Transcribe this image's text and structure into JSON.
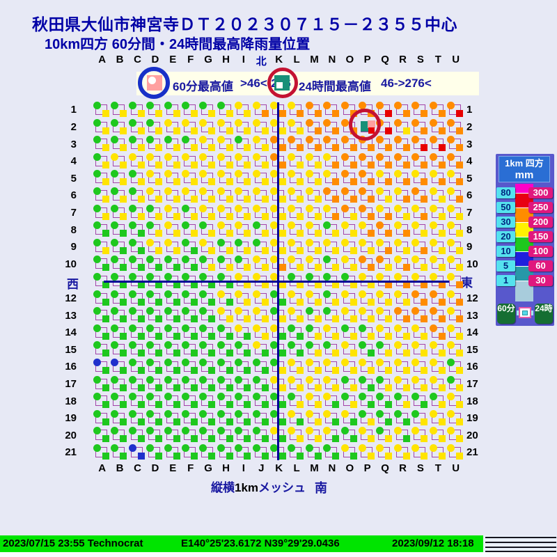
{
  "title": "秋田県大仙市神宮寺ＤＴ２０２３０７１５－２３５５中心",
  "subtitle": "10km四方 60分間・24時間最高降雨量位置",
  "marker_legend": {
    "item_60min": {
      "label": "60分最高値",
      "range": ">46<-276"
    },
    "item_24h": {
      "label": "24時間最高値",
      "range": "46->276<"
    }
  },
  "compass": {
    "north": "北",
    "south": "南",
    "west": "西",
    "east": "東"
  },
  "mesh_note": {
    "prefix": "縦横",
    "bold": "1km",
    "suffix": "メッシュ"
  },
  "chart_data": {
    "type": "heatmap",
    "title": "10km四方 60分間・24時間最高降雨量位置",
    "description": "21x21 1km mesh; per cell a circle = 60-min max rainfall class and a square = 24-hour max rainfall class",
    "columns_top": [
      "A",
      "B",
      "C",
      "D",
      "E",
      "F",
      "G",
      "H",
      "I",
      "北",
      "K",
      "L",
      "M",
      "N",
      "O",
      "P",
      "Q",
      "R",
      "S",
      "T",
      "U"
    ],
    "columns_bottom": [
      "A",
      "B",
      "C",
      "D",
      "E",
      "F",
      "G",
      "H",
      "I",
      "J",
      "K",
      "L",
      "M",
      "N",
      "O",
      "P",
      "Q",
      "R",
      "S",
      "T",
      "U"
    ],
    "rows": [
      "1",
      "2",
      "3",
      "4",
      "5",
      "6",
      "7",
      "8",
      "9",
      "10",
      "11",
      "12",
      "13",
      "14",
      "15",
      "16",
      "17",
      "18",
      "19",
      "20",
      "21"
    ],
    "class_colors": {
      "g": "#1EC81E",
      "y": "#FFE400",
      "o": "#FF8C00",
      "r": "#E80000",
      "b": "#2030CC"
    },
    "circle_classes": [
      "ggggggggyyyyooooooooo",
      "ggggyyyyyyyyooooooooo",
      "ggggggyygyooooooooooo",
      "gyyyyyyyyyoyyyooooooo",
      "gggyyyyyyyyyyyooyyyyy",
      "gggyyyyyyyyyyoooyyoyy",
      "ggggygyyyyyyyyooyyyyy",
      "ggggyggyygyyygyyoyyyy",
      "gggyygygggyyyyyyyyyyy",
      "gggggggggyyyygyooyyyy",
      "ggggggggyyyggggyyyyyy",
      "gggggggyyygyygyyyyooy",
      "gggggggyyygyggyyyoooy",
      "ggggggggyyyggyggyyyoy",
      "gggggggggyggggyggyyyy",
      "bbgggggggggyyyyyyyyyg",
      "ggggggggggyyyygggyyyg",
      "ggggggggggggyyggggggy",
      "gggggggggggyyyyggggyy",
      "ggggggggggyyyygygyyyy",
      "ggbgggggggggggyyyyyyy"
    ],
    "square_classes": [
      "yyyyyyyyyooooooorooor",
      "yyyyyyyyyyyyooorryooo",
      "yyyyyyyyyyoooooooorro",
      "yyyyyyyyyyoyyoooooooo",
      "yyyyyyyyyyyyyoooooooo",
      "yyyyyyyyyyyyyoooyooyo",
      "yyyyyyyyyyyyyoyooyoyy",
      "gggyyyyyyyyyyyyoooyyy",
      "yggyygyyyyyyyyyyoyoyy",
      "ggggggyyyyoyyyyoyoyyy",
      "ggggggggyyyyyyyyooooo",
      "ggggggggyygyyyyyyyooo",
      "gggggggyyyyyyyyyyoooo",
      "gggggggggyggyyyyyyyoy",
      "ggggggggggggyyygyyyyy",
      "ggggggggggyyyyyyyyyyy",
      "ggggggggggyyyyygyyyyy",
      "gggggggggggyygyggygyy",
      "ggggggggggggyggyggyyy",
      "gggggggggggyyggyygyyy",
      "ggbggggggggggggyyyyyy"
    ],
    "center_cell": {
      "col_label": "P",
      "row": 2,
      "col_index": 15
    },
    "scale_60min_mm": [
      80,
      50,
      30,
      20,
      10,
      5,
      1
    ],
    "scale_24h_mm": [
      300,
      250,
      200,
      150,
      100,
      60,
      30
    ]
  },
  "scale_panel": {
    "header_area": "1km 四方",
    "header_unit": "mm",
    "left_values": [
      "80",
      "50",
      "30",
      "20",
      "10",
      "5",
      "1"
    ],
    "right_values": [
      "300",
      "250",
      "200",
      "150",
      "100",
      "60",
      "30"
    ],
    "band_colors": [
      "#FF00C8",
      "#E80012",
      "#FF8C00",
      "#FFF200",
      "#1EC81E",
      "#1F1FDD",
      "#2898A8",
      "#A8CCDC"
    ],
    "label_60": "60分",
    "label_24": "24時"
  },
  "status_bar": {
    "left": "2023/07/15 23:55 Technocrat",
    "coords": "E140°25'23.6172 N39°29'29.0436",
    "right": "2023/09/12 18:18"
  }
}
